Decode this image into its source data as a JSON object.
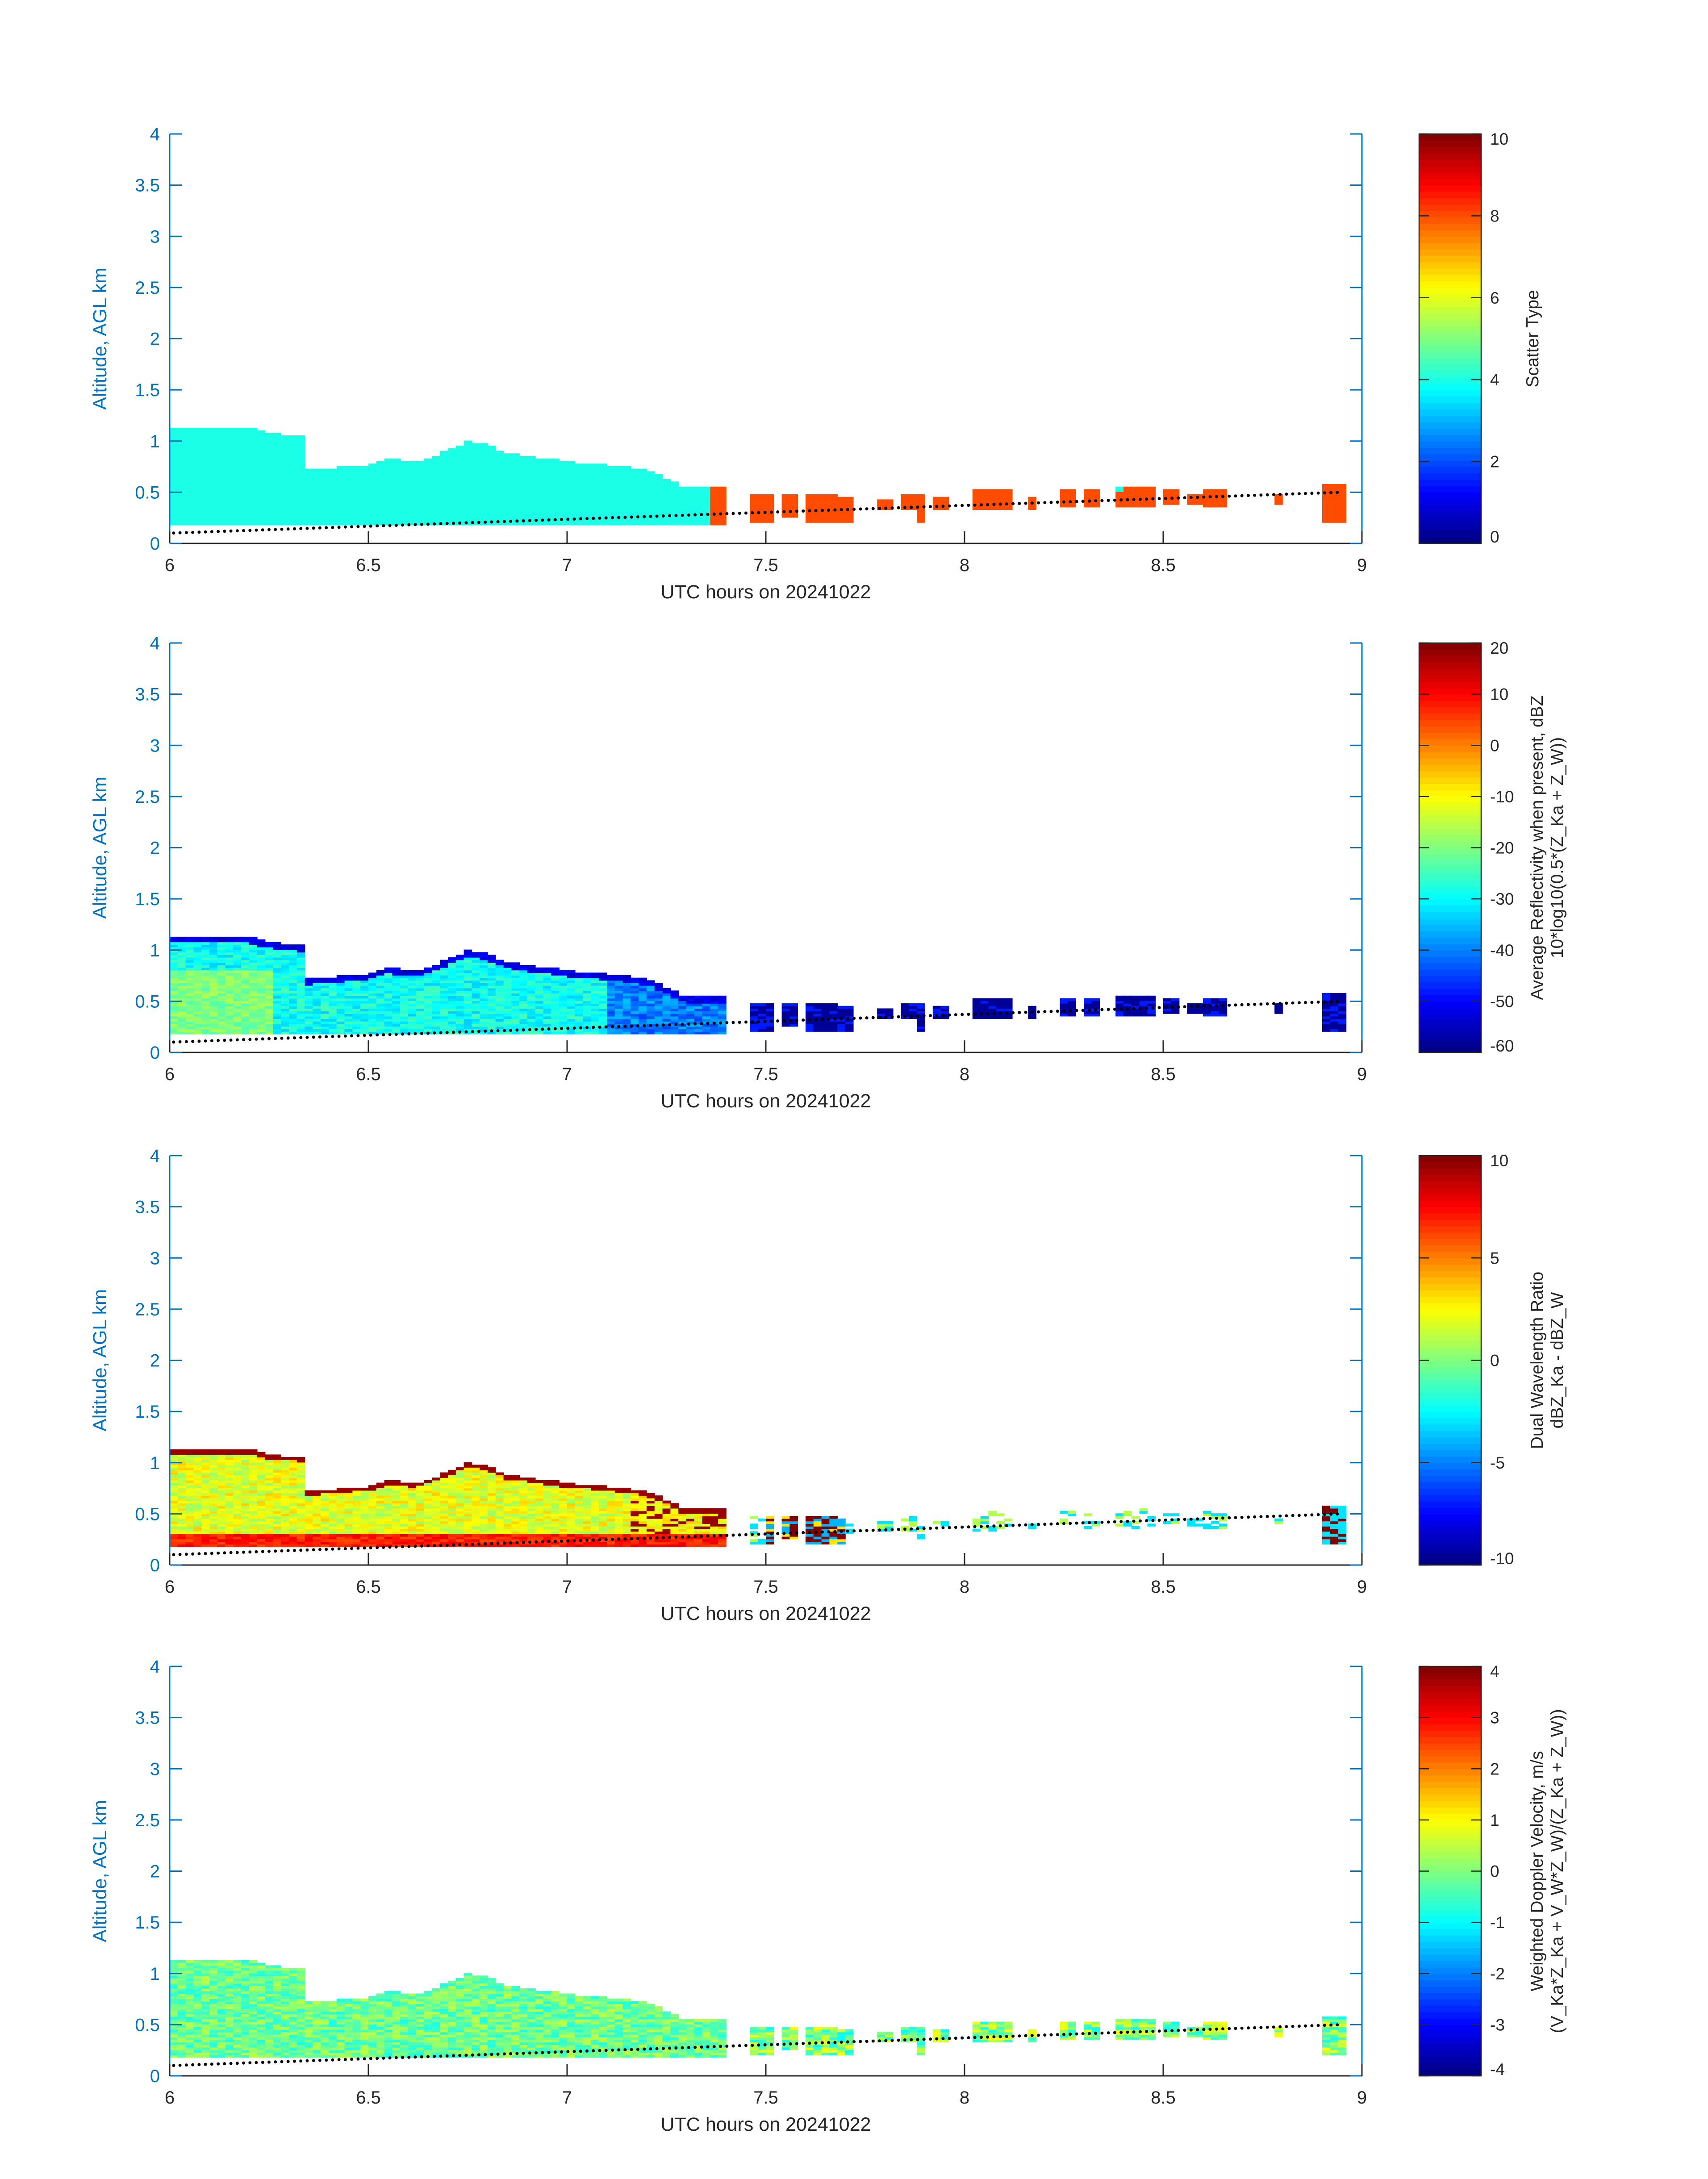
{
  "chart_data": [
    {
      "type": "heatmap",
      "panel": "scatter-type",
      "xlabel": "UTC hours on 20241022",
      "ylabel": "Altitude, AGL km",
      "xlim": [
        6,
        9
      ],
      "ylim": [
        0,
        4
      ],
      "xticks": [
        "6",
        "6.5",
        "7",
        "7.5",
        "8",
        "8.5",
        "9"
      ],
      "yticks": [
        "0",
        "0.5",
        "1",
        "1.5",
        "2",
        "2.5",
        "3",
        "3.5",
        "4"
      ],
      "colorbar": {
        "label_lines": [
          "Scatter Type"
        ],
        "ticks": [
          "0",
          "2",
          "4",
          "6",
          "8",
          "10"
        ],
        "range": [
          0,
          10
        ]
      },
      "field": "scatter",
      "values_note": "Cloud region ~value 4 (cyan) from 6 to ~7.4 h; isolated value ~8 (orange-red) patches 7.35-8.95 h below ~0.55 km"
    },
    {
      "type": "heatmap",
      "panel": "reflectivity",
      "xlabel": "UTC hours on 20241022",
      "ylabel": "Altitude, AGL km",
      "xlim": [
        6,
        9
      ],
      "ylim": [
        0,
        4
      ],
      "xticks": [
        "6",
        "6.5",
        "7",
        "7.5",
        "8",
        "8.5",
        "9"
      ],
      "yticks": [
        "0",
        "0.5",
        "1",
        "1.5",
        "2",
        "2.5",
        "3",
        "3.5",
        "4"
      ],
      "colorbar": {
        "label_lines": [
          "Average Reflectivity when present, dBZ",
          "10*log10(0.5*(Z_Ka + Z_W))"
        ],
        "ticks": [
          "-60",
          "-50",
          "-40",
          "-30",
          "-20",
          "-10",
          "0",
          "10",
          "20"
        ],
        "range": [
          -60,
          20
        ]
      },
      "field": "reflectivity",
      "values_note": "Cloud interior ~-25 to -35 dBZ, edges ~-50 to -60 dBZ, after 7.4 h mostly below -55 dBZ"
    },
    {
      "type": "heatmap",
      "panel": "dwr",
      "xlabel": "UTC hours on 20241022",
      "ylabel": "Altitude, AGL km",
      "xlim": [
        6,
        9
      ],
      "ylim": [
        0,
        4
      ],
      "xticks": [
        "6",
        "6.5",
        "7",
        "7.5",
        "8",
        "8.5",
        "9"
      ],
      "yticks": [
        "0",
        "0.5",
        "1",
        "1.5",
        "2",
        "2.5",
        "3",
        "3.5",
        "4"
      ],
      "colorbar": {
        "label_lines": [
          "Dual Wavelength Ratio",
          "dBZ_Ka - dBZ_W"
        ],
        "ticks": [
          "-10",
          "-5",
          "0",
          "5",
          "10"
        ],
        "range": [
          -10,
          10
        ]
      },
      "field": "dwr",
      "values_note": "Mostly 0 to 3 dB; ~10 dB along cloud top and lowest gates"
    },
    {
      "type": "heatmap",
      "panel": "doppler-velocity",
      "xlabel": "UTC hours on 20241022",
      "ylabel": "Altitude, AGL km",
      "xlim": [
        6,
        9
      ],
      "ylim": [
        0,
        4
      ],
      "xticks": [
        "6",
        "6.5",
        "7",
        "7.5",
        "8",
        "8.5",
        "9"
      ],
      "yticks": [
        "0",
        "0.5",
        "1",
        "1.5",
        "2",
        "2.5",
        "3",
        "3.5",
        "4"
      ],
      "colorbar": {
        "label_lines": [
          "Weighted Doppler Velocity, m/s",
          "(V_Ka*Z_Ka + V_W*Z_W)/(Z_Ka + Z_W))"
        ],
        "ticks": [
          "-4",
          "-3",
          "-2",
          "-1",
          "0",
          "1",
          "2",
          "3",
          "4"
        ],
        "range": [
          -4,
          4
        ]
      },
      "field": "velocity",
      "values_note": "Mostly -1 to 0.5 m/s"
    }
  ],
  "cloud_top_profile_km": {
    "x": [
      6.0,
      6.2,
      6.25,
      6.33,
      6.34,
      6.5,
      6.55,
      6.62,
      6.68,
      6.72,
      6.75,
      6.8,
      6.85,
      6.95,
      7.0,
      7.1,
      7.2,
      7.3,
      7.4
    ],
    "top": [
      1.13,
      1.13,
      1.08,
      1.05,
      0.72,
      0.77,
      0.83,
      0.8,
      0.88,
      0.95,
      1.0,
      0.96,
      0.88,
      0.83,
      0.8,
      0.77,
      0.72,
      0.55,
      0.55
    ]
  },
  "ground_dots": {
    "x_start": 6.0,
    "x_end": 8.95,
    "note": "Black dotted line rising from ~0.1 km at 6 h to ~0.5 km at 8.95 h"
  },
  "colors": {
    "axis": "#0072BD",
    "text": "#262626",
    "cyan_cloud": "#1efedd",
    "orange_red": "#ff4a10"
  }
}
